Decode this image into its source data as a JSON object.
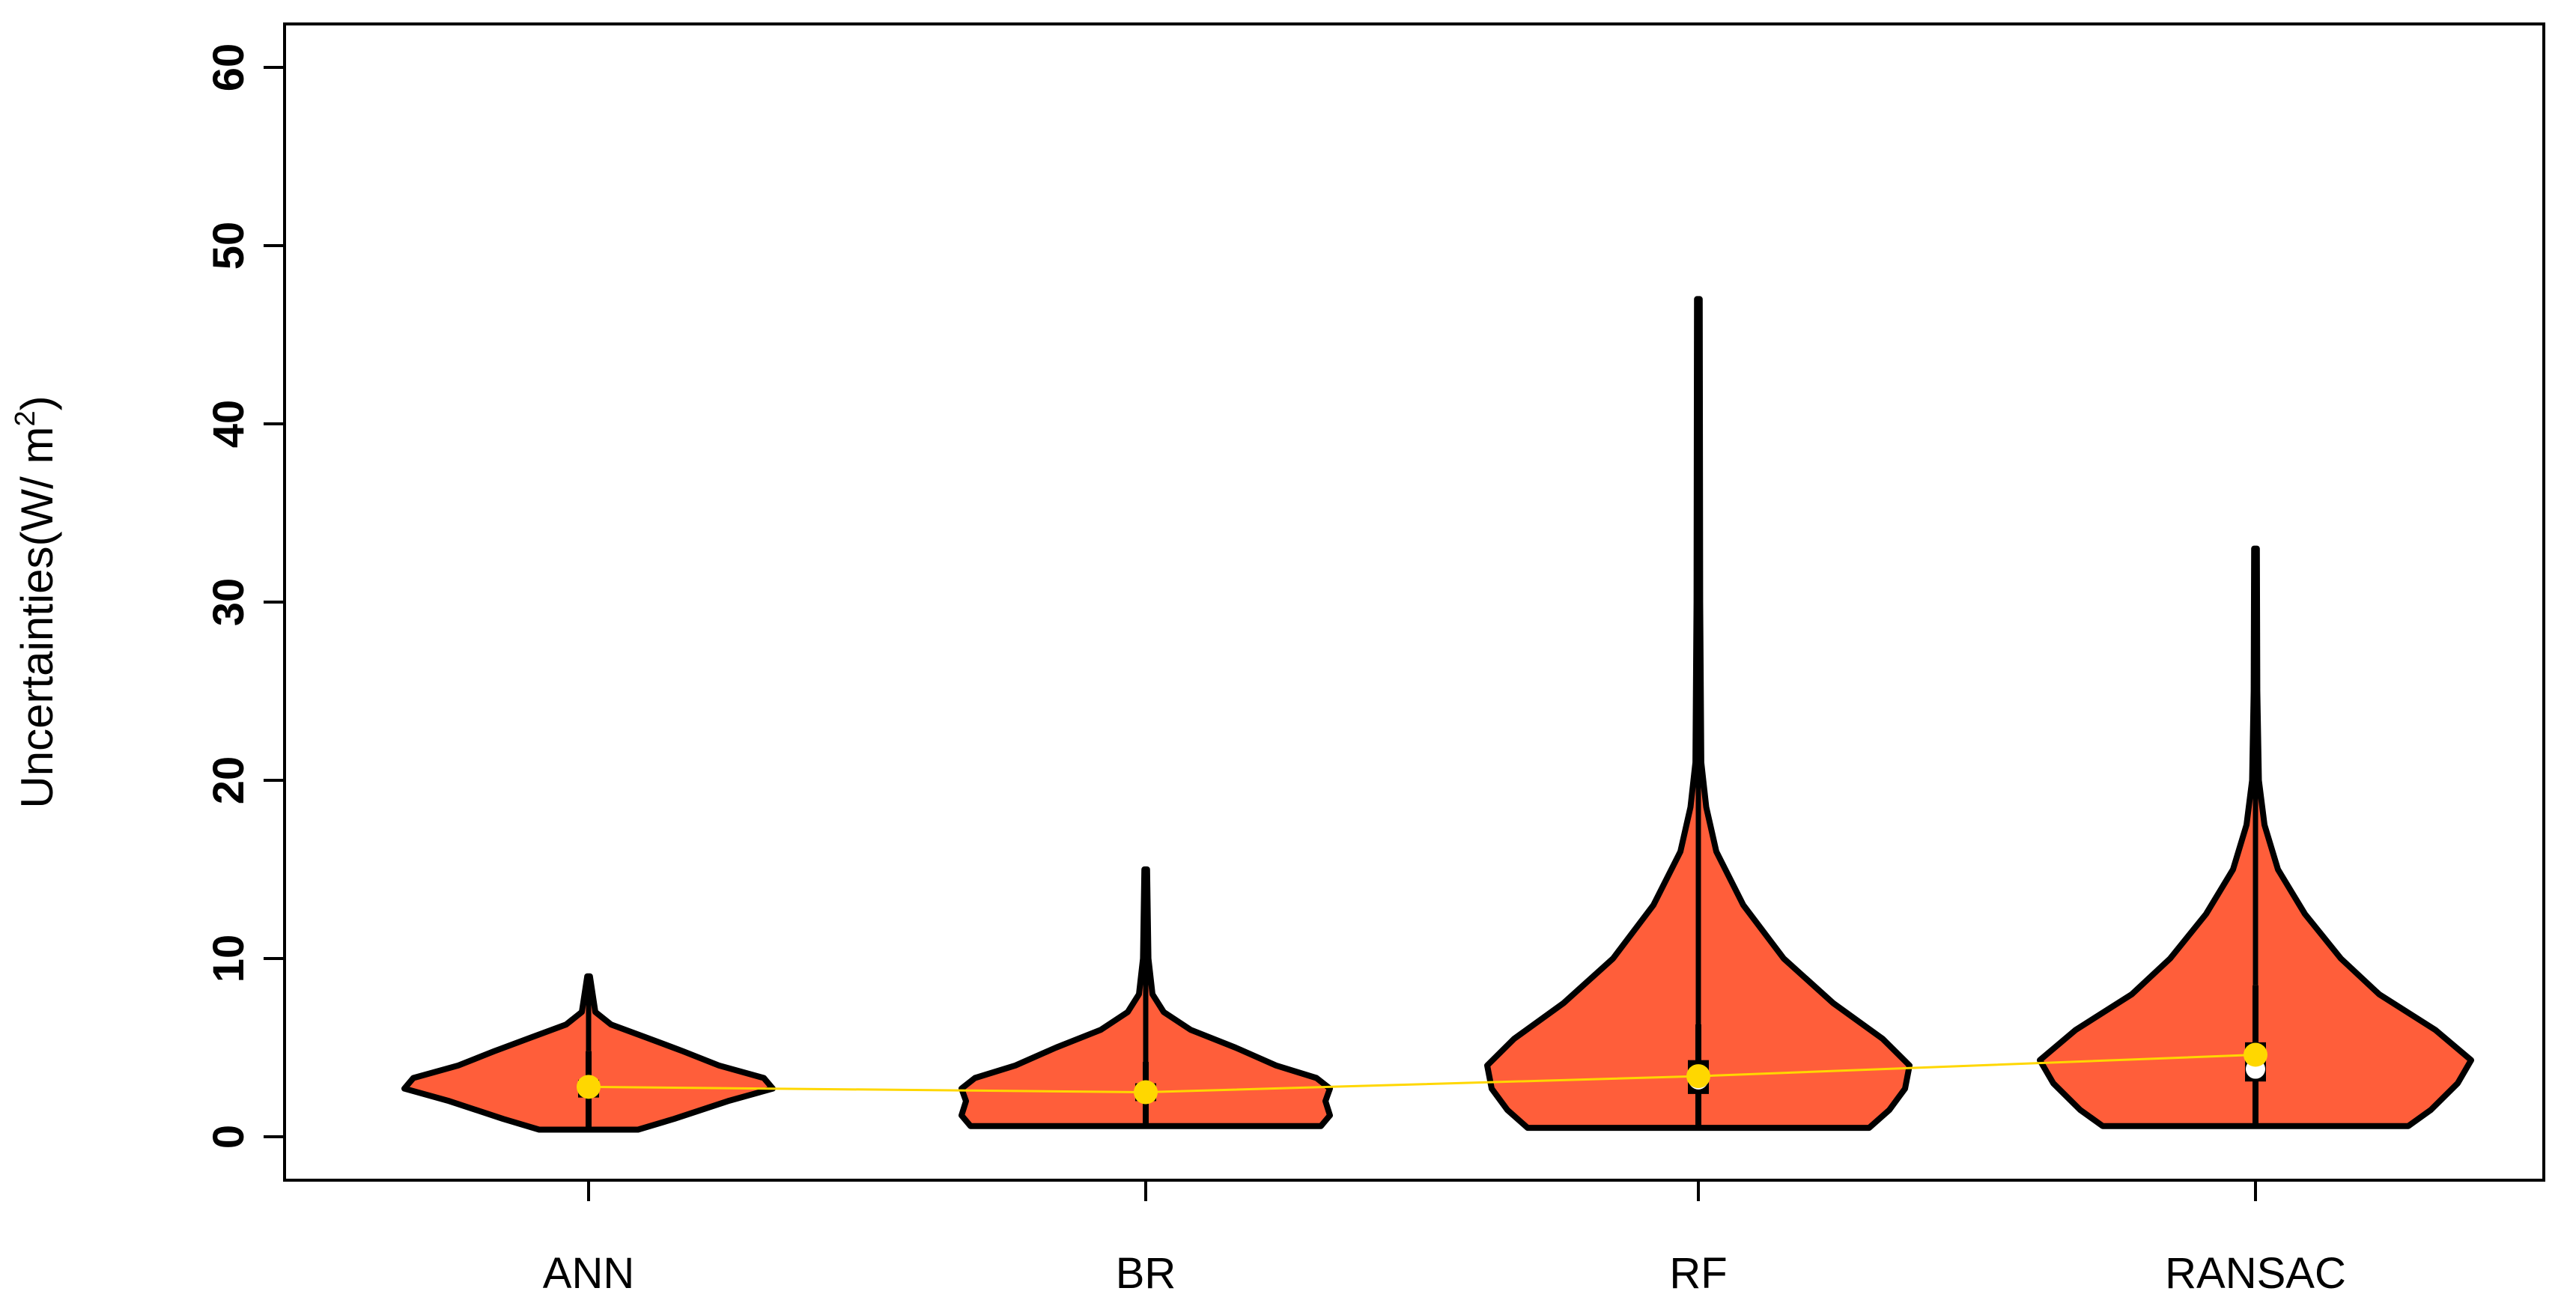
{
  "chart_data": {
    "type": "violin",
    "title": "",
    "ylabel_main": "Uncertainties(W/ m",
    "ylabel_sup": "2",
    "ylabel_close": ")",
    "xlabel": "",
    "ylim": [
      -2,
      62
    ],
    "yticks": [
      0,
      10,
      20,
      30,
      40,
      50,
      60
    ],
    "ytick_labels": [
      "0",
      "10",
      "20",
      "30",
      "40",
      "50",
      "60"
    ],
    "categories": [
      "ANN",
      "BR",
      "RF",
      "RANSAC"
    ],
    "grid": false,
    "legend": "none",
    "colors": {
      "violin_fill": "#FF5E3A",
      "outline": "#000000",
      "mean_line": "#FFD700",
      "mean_point": "#FFD700",
      "median_point": "#FFFFFF"
    },
    "series": [
      {
        "category": "ANN",
        "min": 0.4,
        "q1": 2.2,
        "median": 2.7,
        "q3": 3.2,
        "max": 9.0,
        "whisker_high": 4.8,
        "mean": 2.8,
        "density": [
          [
            0.4,
            0.22
          ],
          [
            1.0,
            0.38
          ],
          [
            2.0,
            0.62
          ],
          [
            2.7,
            0.82
          ],
          [
            3.3,
            0.78
          ],
          [
            4.0,
            0.58
          ],
          [
            4.8,
            0.42
          ],
          [
            5.6,
            0.25
          ],
          [
            6.3,
            0.1
          ],
          [
            7.0,
            0.03
          ],
          [
            9.0,
            0.006
          ]
        ]
      },
      {
        "category": "BR",
        "min": 0.6,
        "q1": 2.0,
        "median": 2.5,
        "q3": 3.0,
        "max": 15.0,
        "whisker_high": 4.2,
        "mean": 2.5,
        "density": [
          [
            0.6,
            0.78
          ],
          [
            1.2,
            0.82
          ],
          [
            2.0,
            0.8
          ],
          [
            2.7,
            0.82
          ],
          [
            3.3,
            0.76
          ],
          [
            4.0,
            0.58
          ],
          [
            5.0,
            0.4
          ],
          [
            6.0,
            0.2
          ],
          [
            7.0,
            0.08
          ],
          [
            8.0,
            0.03
          ],
          [
            10.0,
            0.012
          ],
          [
            15.0,
            0.006
          ]
        ]
      },
      {
        "category": "RF",
        "min": 0.5,
        "q1": 2.4,
        "median": 3.2,
        "q3": 4.3,
        "max": 47.0,
        "whisker_high": 6.3,
        "mean": 3.4,
        "density": [
          [
            0.5,
            0.76
          ],
          [
            1.5,
            0.85
          ],
          [
            2.7,
            0.92
          ],
          [
            4.0,
            0.94
          ],
          [
            5.5,
            0.82
          ],
          [
            7.5,
            0.6
          ],
          [
            10.0,
            0.38
          ],
          [
            13.0,
            0.2
          ],
          [
            16.0,
            0.08
          ],
          [
            18.5,
            0.035
          ],
          [
            21.0,
            0.013
          ],
          [
            30.0,
            0.008
          ],
          [
            47.0,
            0.006
          ]
        ]
      },
      {
        "category": "RANSAC",
        "min": 0.6,
        "q1": 3.1,
        "median": 3.8,
        "q3": 5.3,
        "max": 33.0,
        "whisker_high": 8.5,
        "mean": 4.6,
        "density": [
          [
            0.6,
            0.68
          ],
          [
            1.5,
            0.78
          ],
          [
            3.0,
            0.9
          ],
          [
            4.3,
            0.96
          ],
          [
            6.0,
            0.8
          ],
          [
            8.0,
            0.55
          ],
          [
            10.0,
            0.38
          ],
          [
            12.5,
            0.22
          ],
          [
            15.0,
            0.1
          ],
          [
            17.5,
            0.04
          ],
          [
            20.0,
            0.015
          ],
          [
            25.0,
            0.008
          ],
          [
            33.0,
            0.006
          ]
        ]
      }
    ]
  }
}
